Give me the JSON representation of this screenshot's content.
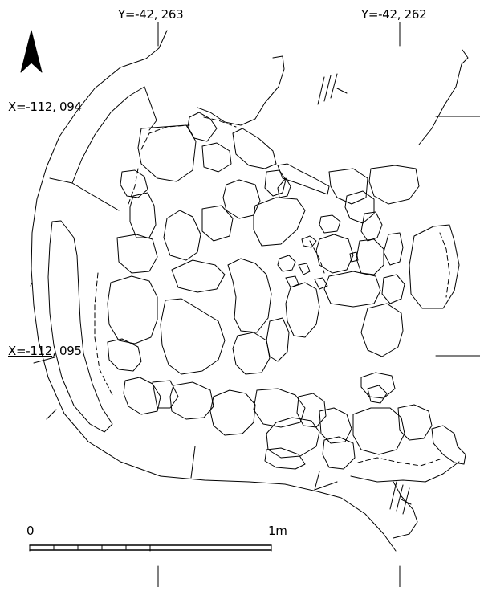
{
  "coordinates": {
    "y_left": "Y=-42, 263",
    "y_right": "Y=-42, 262",
    "x_top_prefix": "X=-112",
    "x_top_suffix": ", 094",
    "x_bottom_prefix": "X=-112",
    "x_bottom_suffix": ", 095"
  },
  "scale_bar": {
    "start_label": "0",
    "end_label": "1m"
  },
  "north_arrow": {
    "icon": "north-arrow-icon"
  },
  "colors": {
    "ink": "#000000",
    "paper": "#ffffff"
  }
}
